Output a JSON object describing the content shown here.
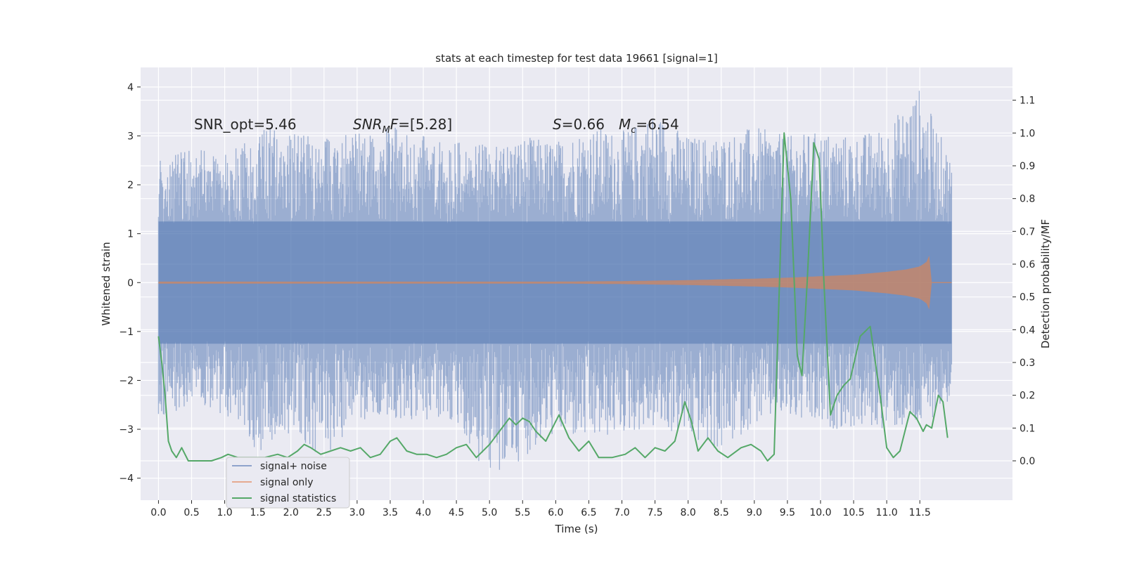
{
  "chart_data": {
    "type": "line",
    "title": "stats at each timestep for test data 19661 [signal=1]",
    "xlabel": "Time (s)",
    "ylabel": "Whitened strain",
    "ylabel_right": "Detection probability/MF",
    "xlim": [
      -0.27,
      12.9
    ],
    "ylim": [
      -4.45,
      4.4
    ],
    "ylim_right": [
      -0.12,
      1.2
    ],
    "x_ticks": [
      0.0,
      0.5,
      1.0,
      1.5,
      2.0,
      2.5,
      3.0,
      3.5,
      4.0,
      4.5,
      5.0,
      5.5,
      6.0,
      6.5,
      7.0,
      7.5,
      8.0,
      8.5,
      9.0,
      9.5,
      10.0,
      10.5,
      11.0,
      11.5
    ],
    "x_tick_labels": [
      "0.0",
      "0.5",
      "1.0",
      "1.5",
      "2.0",
      "2.5",
      "3.0",
      "3.5",
      "4.0",
      "4.5",
      "5.0",
      "5.5",
      "6.0",
      "6.5",
      "7.0",
      "7.5",
      "8.0",
      "8.5",
      "9.0",
      "9.5",
      "10.0",
      "10.5",
      "11.0",
      "11.5"
    ],
    "y_ticks": [
      -4,
      -3,
      -2,
      -1,
      0,
      1,
      2,
      3,
      4
    ],
    "y_tick_labels": [
      "−4",
      "−3",
      "−2",
      "−1",
      "0",
      "1",
      "2",
      "3",
      "4"
    ],
    "y_right_ticks": [
      0.0,
      0.1,
      0.2,
      0.3,
      0.4,
      0.5,
      0.6,
      0.7,
      0.8,
      0.9,
      1.0,
      1.1
    ],
    "y_right_tick_labels": [
      "0.0",
      "0.1",
      "0.2",
      "0.3",
      "0.4",
      "0.5",
      "0.6",
      "0.7",
      "0.8",
      "0.9",
      "1.0",
      "1.1"
    ],
    "annotations": {
      "snr_opt": "SNR_opt=5.46",
      "snr_mf_base": "SNR",
      "snr_mf_sub": "M",
      "snr_mf_rest": "F=[5.28]",
      "s_sym": "S",
      "s_val": "=0.66",
      "mc_sym": "M",
      "mc_sub": "c",
      "mc_val": "=6.54"
    },
    "legend": {
      "placement": "lower-left",
      "entries": [
        {
          "label": "signal+ noise",
          "color": "#8fa3cc"
        },
        {
          "label": "signal only",
          "color": "#e5a990"
        },
        {
          "label": "signal statistics",
          "color": "#55a868"
        }
      ]
    },
    "series": [
      {
        "name": "signal+ noise",
        "axis": "left",
        "color": "#4c72b0",
        "opacity": 0.5,
        "t": [
          0.0,
          0.5,
          1.0,
          1.5,
          2.0,
          2.5,
          3.0,
          3.5,
          4.0,
          4.5,
          5.0,
          5.5,
          6.0,
          6.5,
          7.0,
          7.5,
          8.0,
          8.5,
          9.0,
          9.5,
          10.0,
          10.5,
          11.0,
          11.5,
          11.98
        ],
        "upper": [
          2.5,
          2.9,
          2.6,
          3.1,
          3.2,
          3.0,
          3.1,
          3.2,
          3.0,
          2.9,
          2.8,
          3.0,
          2.9,
          3.2,
          3.1,
          3.5,
          3.0,
          3.0,
          3.2,
          3.0,
          3.1,
          3.0,
          3.2,
          4.0,
          2.5
        ],
        "lower": [
          -2.8,
          -2.6,
          -2.9,
          -3.5,
          -3.1,
          -3.6,
          -2.8,
          -2.8,
          -2.8,
          -2.9,
          -4.1,
          -3.6,
          -3.1,
          -3.3,
          -3.1,
          -3.0,
          -3.2,
          -3.5,
          -2.9,
          -2.8,
          -3.0,
          -3.0,
          -3.0,
          -3.0,
          -2.4
        ]
      },
      {
        "name": "signal only",
        "axis": "left",
        "color": "#dd8452",
        "opacity": 0.65,
        "t": [
          0.0,
          2.0,
          4.0,
          6.0,
          7.0,
          8.0,
          9.0,
          9.5,
          10.0,
          10.5,
          11.0,
          11.3,
          11.5,
          11.6,
          11.65,
          11.68
        ],
        "amp": [
          0.02,
          0.02,
          0.02,
          0.02,
          0.03,
          0.05,
          0.08,
          0.1,
          0.13,
          0.16,
          0.22,
          0.27,
          0.33,
          0.42,
          0.58,
          0.02
        ]
      },
      {
        "name": "signal statistics",
        "axis": "right",
        "color": "#55a868",
        "t": [
          0.0,
          0.05,
          0.1,
          0.15,
          0.2,
          0.27,
          0.35,
          0.45,
          0.6,
          0.8,
          0.95,
          1.05,
          1.2,
          1.4,
          1.6,
          1.8,
          1.95,
          2.1,
          2.2,
          2.3,
          2.45,
          2.6,
          2.75,
          2.9,
          3.05,
          3.2,
          3.35,
          3.5,
          3.6,
          3.75,
          3.9,
          4.05,
          4.2,
          4.35,
          4.5,
          4.65,
          4.8,
          5.0,
          5.15,
          5.3,
          5.4,
          5.5,
          5.6,
          5.7,
          5.85,
          5.95,
          6.05,
          6.2,
          6.35,
          6.5,
          6.65,
          6.85,
          7.05,
          7.2,
          7.35,
          7.5,
          7.65,
          7.8,
          7.95,
          8.05,
          8.15,
          8.3,
          8.45,
          8.6,
          8.8,
          8.95,
          9.1,
          9.2,
          9.3,
          9.45,
          9.55,
          9.65,
          9.72,
          9.8,
          9.9,
          9.98,
          10.05,
          10.15,
          10.25,
          10.35,
          10.45,
          10.6,
          10.75,
          10.9,
          11.0,
          11.1,
          11.2,
          11.35,
          11.45,
          11.55,
          11.6,
          11.68,
          11.78,
          11.85,
          11.92
        ],
        "p": [
          0.38,
          0.3,
          0.2,
          0.06,
          0.03,
          0.01,
          0.04,
          0.0,
          0.0,
          0.0,
          0.01,
          0.02,
          0.01,
          0.01,
          0.01,
          0.02,
          0.01,
          0.03,
          0.05,
          0.04,
          0.02,
          0.03,
          0.04,
          0.03,
          0.04,
          0.01,
          0.02,
          0.06,
          0.07,
          0.03,
          0.02,
          0.02,
          0.01,
          0.02,
          0.04,
          0.05,
          0.01,
          0.05,
          0.09,
          0.13,
          0.11,
          0.13,
          0.12,
          0.09,
          0.06,
          0.1,
          0.14,
          0.07,
          0.03,
          0.06,
          0.01,
          0.01,
          0.02,
          0.04,
          0.01,
          0.04,
          0.03,
          0.06,
          0.18,
          0.12,
          0.03,
          0.07,
          0.03,
          0.01,
          0.04,
          0.05,
          0.03,
          0.0,
          0.02,
          1.0,
          0.8,
          0.32,
          0.26,
          0.55,
          0.97,
          0.92,
          0.55,
          0.14,
          0.2,
          0.23,
          0.25,
          0.38,
          0.41,
          0.2,
          0.04,
          0.01,
          0.03,
          0.15,
          0.13,
          0.09,
          0.11,
          0.1,
          0.2,
          0.18,
          0.07
        ]
      }
    ]
  }
}
